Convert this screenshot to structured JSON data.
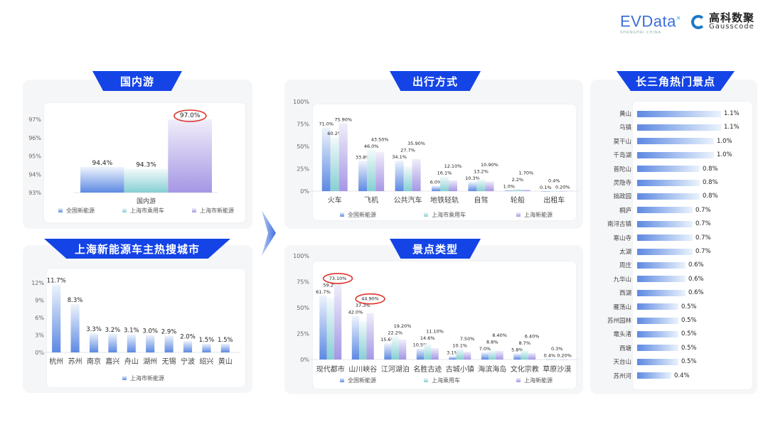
{
  "logos": {
    "evdata": "EVData",
    "evdata_sub": "SHANGHAI CHINA",
    "gausscode_cn": "高科数聚",
    "gausscode_en": "Gausscode"
  },
  "colors": {
    "banner": "#1444e6",
    "series": [
      "#5d89e2",
      "#8fd3d6",
      "#a89be6"
    ],
    "highlight": "#e0322b"
  },
  "panels": {
    "domestic": {
      "title": "国内游"
    },
    "cities": {
      "title": "上海新能源车主热搜城市"
    },
    "modes": {
      "title": "出行方式"
    },
    "scenic": {
      "title": "景点类型"
    },
    "spots": {
      "title": "长三角热门景点"
    }
  },
  "chart_data": [
    {
      "id": "domestic",
      "type": "bar",
      "categories": [
        "国内游"
      ],
      "series": [
        {
          "name": "全国新能源",
          "values": [
            94.4
          ]
        },
        {
          "name": "上海市乘用车",
          "values": [
            94.3
          ]
        },
        {
          "name": "上海市新能源",
          "values": [
            97.0
          ]
        }
      ],
      "ylim": [
        93,
        97
      ],
      "yticks": [
        93,
        94,
        95,
        96,
        97
      ],
      "unit": "%",
      "label_decimals": [
        1,
        1,
        1
      ],
      "highlights": [
        {
          "category": 0,
          "series": 2
        }
      ],
      "legend": "bottom"
    },
    {
      "id": "cities",
      "type": "bar",
      "categories": [
        "杭州",
        "苏州",
        "南京",
        "嘉兴",
        "舟山",
        "湖州",
        "无锡",
        "宁波",
        "绍兴",
        "黄山"
      ],
      "series": [
        {
          "name": "上海市新能源",
          "values": [
            11.7,
            8.3,
            3.3,
            3.2,
            3.1,
            3.0,
            2.9,
            2.0,
            1.5,
            1.5
          ]
        }
      ],
      "ylim": [
        0,
        12
      ],
      "yticks": [
        0,
        3,
        6,
        9,
        12
      ],
      "unit": "%",
      "label_decimals": [
        1
      ],
      "highlights": [],
      "legend": "bottom"
    },
    {
      "id": "modes",
      "type": "bar",
      "categories": [
        "火车",
        "飞机",
        "公共汽车",
        "地铁轻轨",
        "自驾",
        "轮船",
        "出租车"
      ],
      "series": [
        {
          "name": "全国新能源",
          "values": [
            71.0,
            33.8,
            34.1,
            6.0,
            10.3,
            1.0,
            0.1
          ]
        },
        {
          "name": "上海市乘用车",
          "values": [
            60.2,
            46.0,
            27.7,
            16.1,
            13.2,
            2.2,
            0.4
          ]
        },
        {
          "name": "上海新能源",
          "values": [
            75.9,
            43.5,
            35.9,
            12.1,
            10.9,
            1.7,
            0.2
          ]
        }
      ],
      "ylim": [
        0,
        100
      ],
      "yticks": [
        0,
        25,
        50,
        75,
        100
      ],
      "unit": "%",
      "label_decimals": [
        1,
        1,
        2
      ],
      "highlights": [],
      "legend": "bottom"
    },
    {
      "id": "scenic",
      "type": "bar",
      "categories": [
        "现代都市",
        "山川峡谷",
        "江河湖泊",
        "名胜古迹",
        "古城小镇",
        "海滨海岛",
        "文化宗教",
        "草原沙漠"
      ],
      "series": [
        {
          "name": "全国新能源",
          "values": [
            61.7,
            42.0,
            15.6,
            10.5,
            3.1,
            7.0,
            5.8,
            0.4
          ]
        },
        {
          "name": "上海乘用车",
          "values": [
            59.2,
            37.3,
            22.2,
            14.6,
            10.1,
            8.8,
            8.7,
            0.3
          ]
        },
        {
          "name": "上海新能源",
          "values": [
            73.1,
            44.9,
            19.2,
            11.1,
            7.5,
            8.4,
            6.4,
            0.2
          ]
        }
      ],
      "ylim": [
        0,
        100
      ],
      "yticks": [
        0,
        25,
        50,
        75,
        100
      ],
      "unit": "%",
      "label_decimals": [
        1,
        1,
        2
      ],
      "highlights": [
        {
          "category": 0,
          "series": 2
        },
        {
          "category": 1,
          "series": 2
        }
      ],
      "legend": "bottom"
    },
    {
      "id": "spots",
      "type": "bar",
      "orientation": "horizontal",
      "categories": [
        "黄山",
        "乌镇",
        "莫干山",
        "千岛湖",
        "普陀山",
        "灵隐寺",
        "拙政园",
        "桐庐",
        "南浔古镇",
        "寒山寺",
        "太湖",
        "周庄",
        "九华山",
        "西湖",
        "雁荡山",
        "苏州园林",
        "鼋头渚",
        "西塘",
        "天台山",
        "苏州河"
      ],
      "values": [
        1.1,
        1.1,
        1.0,
        1.0,
        0.8,
        0.8,
        0.8,
        0.7,
        0.7,
        0.7,
        0.7,
        0.6,
        0.6,
        0.6,
        0.5,
        0.5,
        0.5,
        0.5,
        0.5,
        0.4
      ],
      "unit": "%",
      "label_decimals": 1
    }
  ]
}
